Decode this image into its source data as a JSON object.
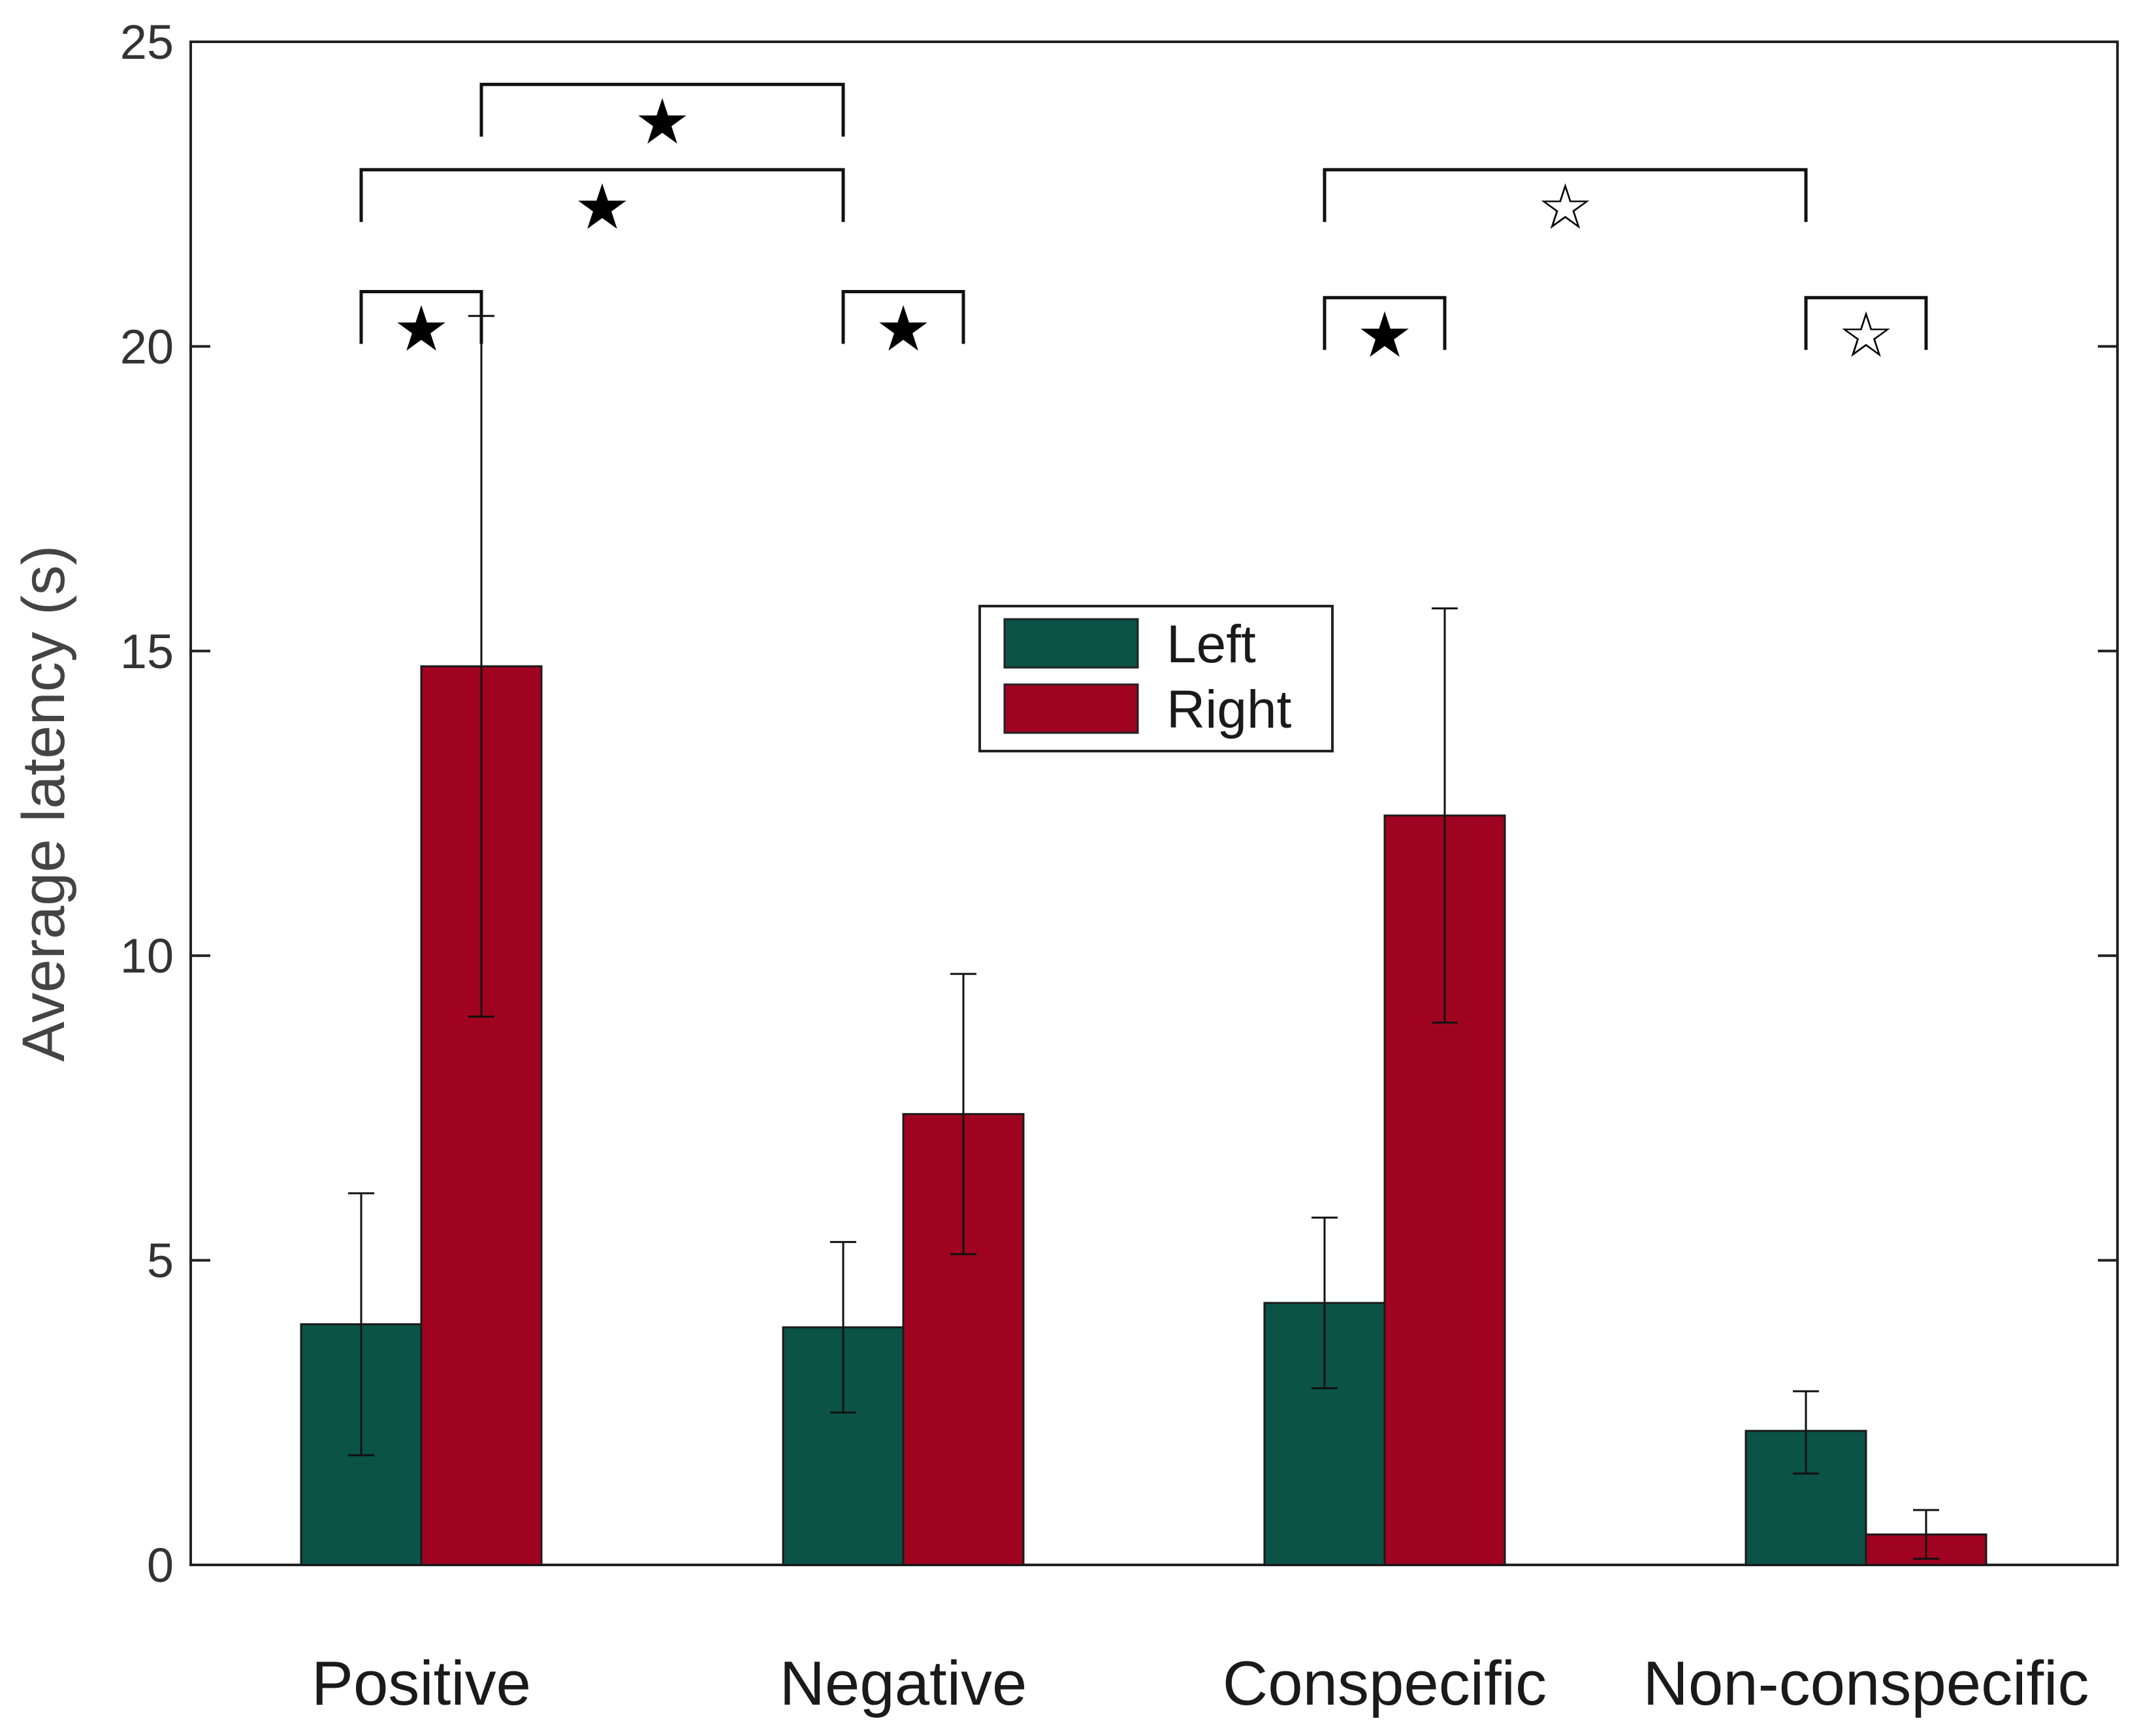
{
  "chart_data": {
    "type": "bar",
    "title": "",
    "xlabel": "",
    "ylabel": "Average latency (s)",
    "ylim": [
      0,
      25
    ],
    "yticks": [
      "0",
      "5",
      "10",
      "15",
      "20",
      "25"
    ],
    "categories": [
      "Positive",
      "Negative",
      "Conspecific",
      "Non-conspecific"
    ],
    "series": [
      {
        "name": "Left",
        "color": "#0b5247",
        "values": [
          3.95,
          3.9,
          4.3,
          2.2
        ],
        "error_low": [
          1.8,
          2.5,
          2.9,
          1.5
        ],
        "error_high": [
          6.1,
          5.3,
          5.7,
          2.85
        ]
      },
      {
        "name": "Right",
        "color": "#a00320",
        "values": [
          14.75,
          7.4,
          12.3,
          0.5
        ],
        "error_low": [
          9.0,
          5.1,
          8.9,
          0.1
        ],
        "error_high": [
          20.5,
          9.7,
          15.7,
          0.9
        ]
      }
    ],
    "legend": {
      "position": "center",
      "entries": [
        "Left",
        "Right"
      ]
    },
    "significance": [
      {
        "from": "Positive-Left",
        "to": "Positive-Right",
        "level": 20.9,
        "marker": "★"
      },
      {
        "from": "Positive-Left",
        "to": "Negative-Left",
        "level": 22.9,
        "marker": "★"
      },
      {
        "from": "Positive-Right",
        "to": "Negative-Left",
        "level": 24.3,
        "marker": "★"
      },
      {
        "from": "Negative-Left",
        "to": "Negative-Right",
        "level": 20.9,
        "marker": "★"
      },
      {
        "from": "Conspecific-Left",
        "to": "Conspecific-Right",
        "level": 20.8,
        "marker": "★"
      },
      {
        "from": "Conspecific-Left",
        "to": "Non-conspecific-Left",
        "level": 22.9,
        "marker": "☆"
      },
      {
        "from": "Non-conspecific-Left",
        "to": "Non-conspecific-Right",
        "level": 20.8,
        "marker": "☆"
      }
    ]
  }
}
